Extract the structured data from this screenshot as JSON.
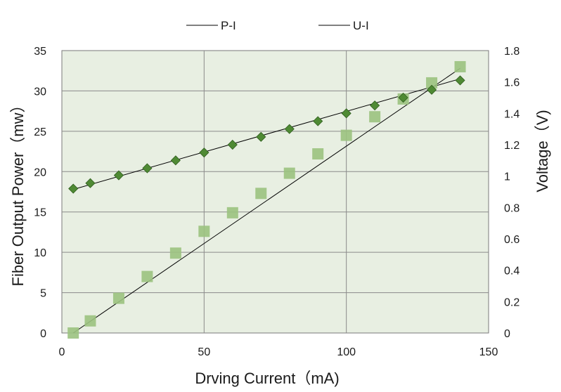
{
  "chart_data": {
    "type": "scatter",
    "xlabel": "Drving Current（mA)",
    "ylabel_left": "Fiber Output Power（mw）",
    "ylabel_right": "Voltage（V)",
    "xlim": [
      0,
      150
    ],
    "ylim_left": [
      0,
      35
    ],
    "ylim_right": [
      0,
      1.8
    ],
    "x_ticks": [
      0,
      50,
      100,
      150
    ],
    "y_left_ticks": [
      0,
      5,
      10,
      15,
      20,
      25,
      30,
      35
    ],
    "y_right_ticks": [
      "0",
      "0.2",
      "0.4",
      "0.6",
      "0.8",
      "1",
      "1.2",
      "1.4",
      "1.6",
      "1.8"
    ],
    "grid": true,
    "legend_position": "top",
    "plot_background": "#e8efe2",
    "series": [
      {
        "name": "P-I",
        "axis": "left",
        "marker": "square",
        "color": "#9bc27f",
        "x": [
          4,
          10,
          20,
          30,
          40,
          50,
          60,
          70,
          80,
          90,
          100,
          110,
          120,
          130,
          140
        ],
        "y": [
          0,
          1.5,
          4.3,
          7.0,
          9.9,
          12.6,
          14.9,
          17.3,
          19.8,
          22.2,
          24.5,
          26.8,
          29.0,
          31.0,
          33.0
        ],
        "trendline": {
          "x": [
            4,
            140
          ],
          "y": [
            0,
            32.8
          ]
        }
      },
      {
        "name": "U-I",
        "axis": "right",
        "marker": "diamond",
        "color": "#4f8a34",
        "x": [
          4,
          10,
          20,
          30,
          40,
          50,
          60,
          70,
          80,
          90,
          100,
          110,
          120,
          130,
          140
        ],
        "y": [
          0.92,
          0.955,
          1.005,
          1.05,
          1.1,
          1.15,
          1.2,
          1.25,
          1.3,
          1.35,
          1.4,
          1.45,
          1.5,
          1.55,
          1.61
        ],
        "trendline": {
          "x": [
            4,
            140
          ],
          "y": [
            0.915,
            1.62
          ]
        }
      }
    ]
  }
}
